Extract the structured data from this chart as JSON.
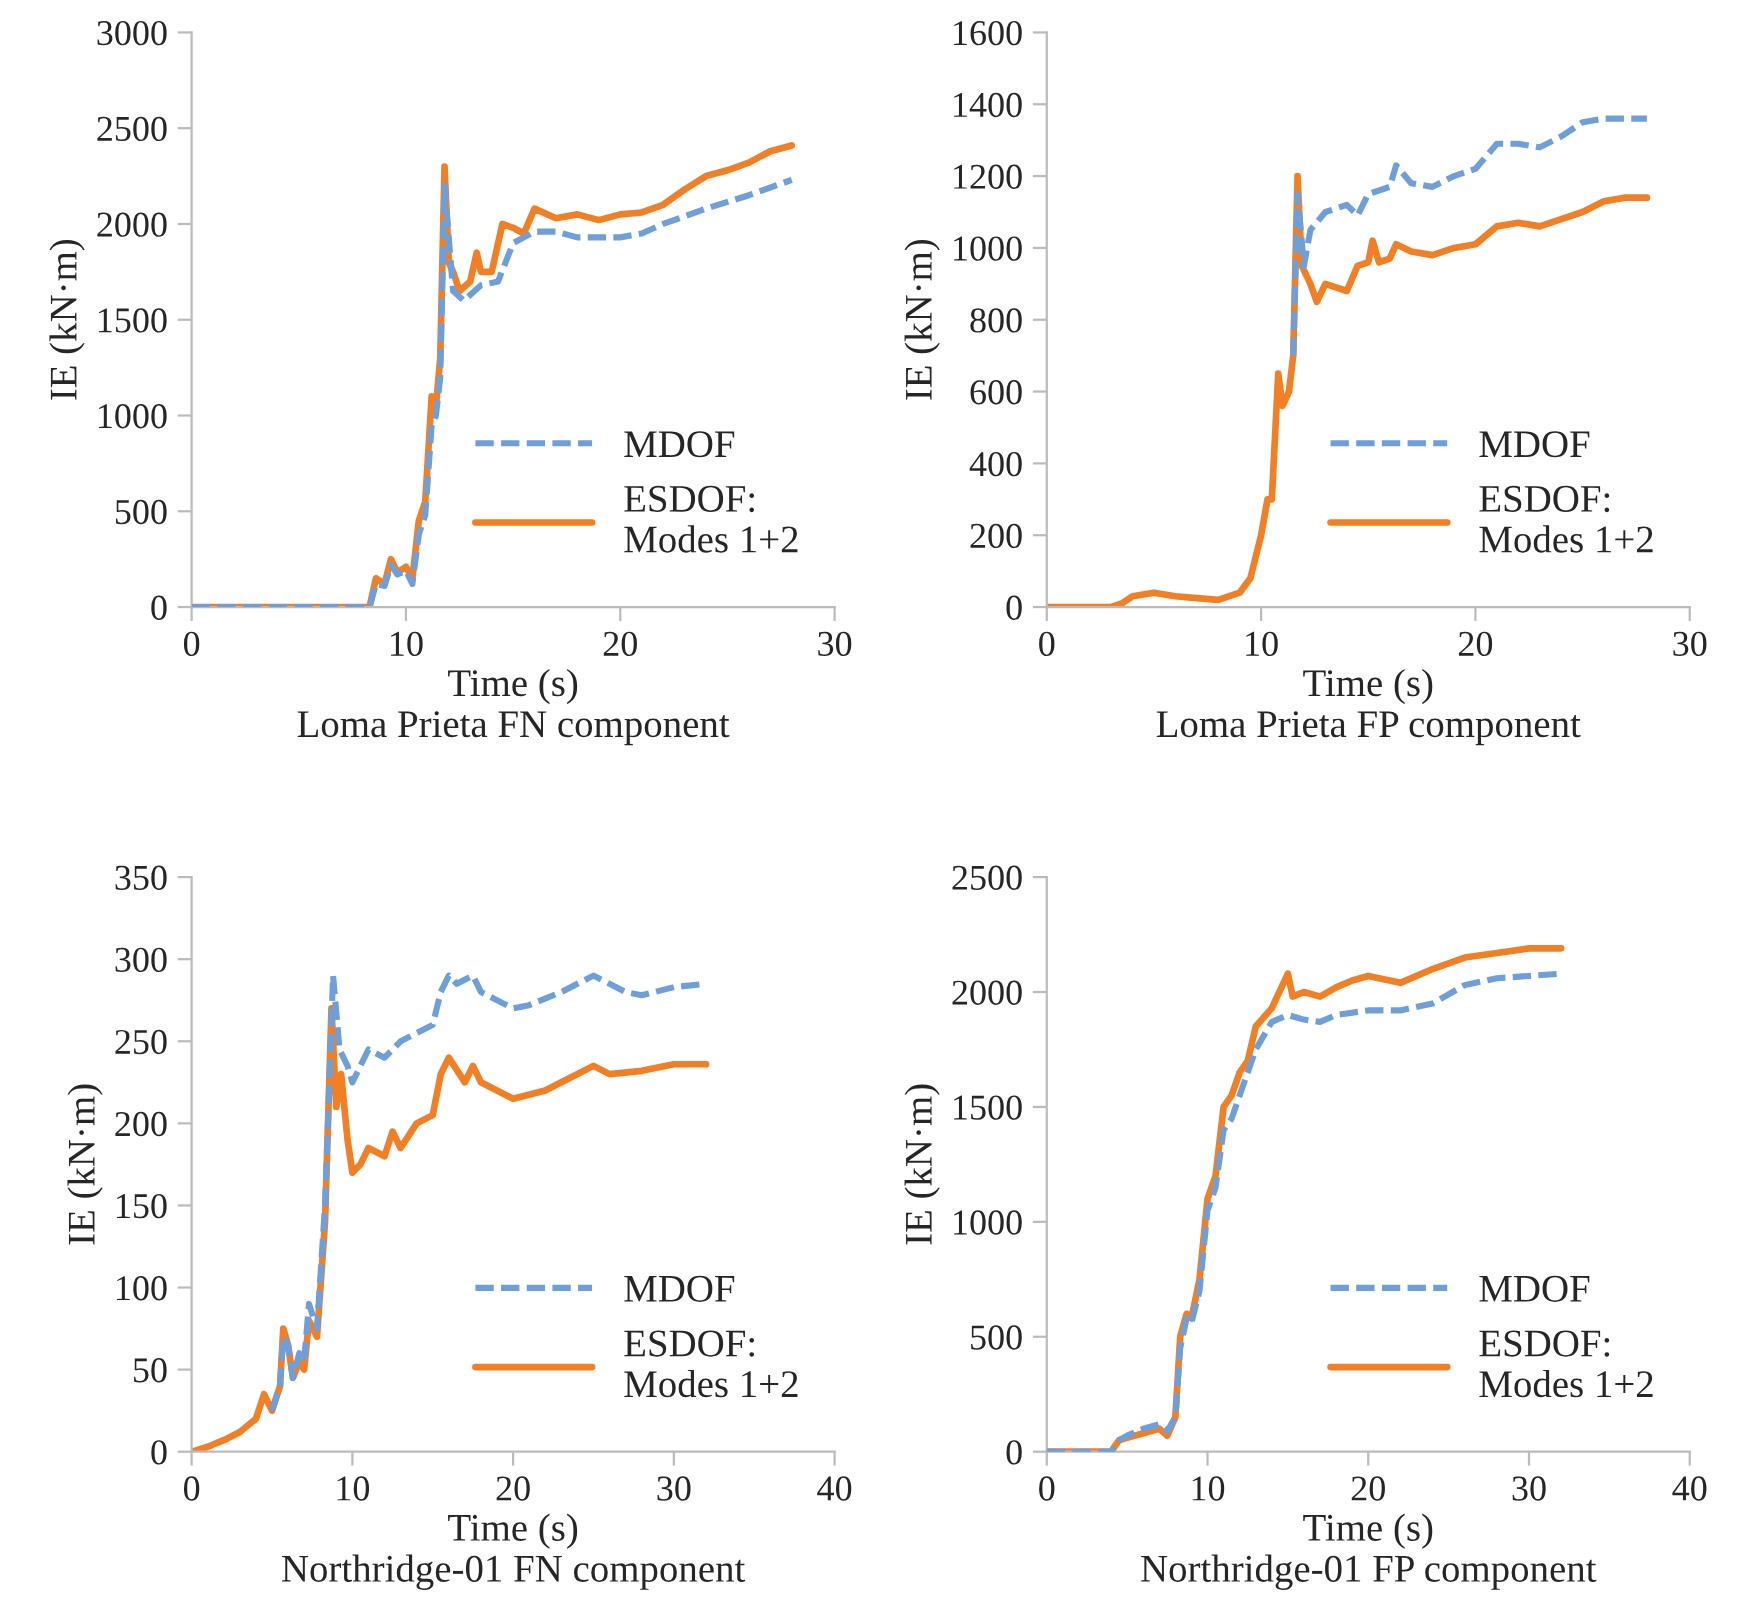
{
  "chart_data": [
    {
      "type": "line",
      "title": "Loma Prieta FN component",
      "xlabel": "Time (s)",
      "ylabel": "IE (kN·m)",
      "xlim": [
        0,
        30
      ],
      "xticks": [
        0,
        10,
        20,
        30
      ],
      "ylim": [
        0,
        3000
      ],
      "yticks": [
        0,
        500,
        1000,
        1500,
        2000,
        2500,
        3000
      ],
      "grid": false,
      "legend": "bottom right",
      "series": [
        {
          "name": "MDOF",
          "color": "#6f9fd8",
          "line_style": "dashed",
          "x": [
            0,
            8.3,
            8.6,
            9,
            9.3,
            9.6,
            10,
            10.3,
            10.6,
            10.9,
            11.2,
            11.4,
            11.6,
            11.8,
            12.2,
            12.7,
            13.5,
            14.3,
            15,
            16,
            17,
            18,
            20,
            21,
            22,
            24,
            26,
            28
          ],
          "values": [
            0,
            0,
            120,
            110,
            220,
            170,
            190,
            120,
            380,
            480,
            950,
            1000,
            1200,
            2200,
            1650,
            1600,
            1680,
            1700,
            1900,
            1960,
            1960,
            1930,
            1930,
            1950,
            2000,
            2080,
            2150,
            2230
          ]
        },
        {
          "name": "ESDOF:\nModes 1+2",
          "color": "#f07f26",
          "line_style": "solid",
          "x": [
            0,
            8.3,
            8.6,
            9,
            9.3,
            9.6,
            10,
            10.3,
            10.6,
            10.9,
            11.2,
            11.4,
            11.6,
            11.8,
            12.0,
            12.2,
            12.5,
            13,
            13.3,
            13.5,
            14,
            14.5,
            15,
            15.5,
            16,
            17,
            18,
            19,
            20,
            21,
            22,
            23,
            24,
            25,
            26,
            27,
            28
          ],
          "values": [
            0,
            0,
            150,
            120,
            250,
            180,
            210,
            150,
            450,
            550,
            1100,
            1050,
            1300,
            2300,
            1800,
            1750,
            1650,
            1700,
            1850,
            1750,
            1750,
            2000,
            1980,
            1950,
            2080,
            2030,
            2050,
            2020,
            2050,
            2060,
            2100,
            2180,
            2250,
            2280,
            2320,
            2380,
            2410
          ]
        }
      ]
    },
    {
      "type": "line",
      "title": "Loma Prieta FP component",
      "xlabel": "Time (s)",
      "ylabel": "IE (kN·m)",
      "xlim": [
        0,
        30
      ],
      "xticks": [
        0,
        10,
        20,
        30
      ],
      "ylim": [
        0,
        1600
      ],
      "yticks": [
        0,
        200,
        400,
        600,
        800,
        1000,
        1200,
        1400,
        1600
      ],
      "grid": false,
      "legend": "bottom right",
      "series": [
        {
          "name": "MDOF",
          "color": "#6f9fd8",
          "line_style": "dashed",
          "x": [
            11.5,
            11.7,
            12,
            12.3,
            13,
            14,
            14.5,
            15,
            16,
            16.3,
            17,
            18,
            19,
            20,
            21,
            22,
            23,
            24,
            25,
            26,
            28
          ],
          "values": [
            700,
            1150,
            950,
            1050,
            1100,
            1120,
            1090,
            1150,
            1170,
            1230,
            1180,
            1170,
            1200,
            1220,
            1290,
            1290,
            1280,
            1310,
            1350,
            1360,
            1360
          ]
        },
        {
          "name": "ESDOF:\nModes 1+2",
          "color": "#f07f26",
          "line_style": "solid",
          "x": [
            0,
            3,
            3.5,
            4,
            5,
            6,
            7,
            8,
            9,
            9.5,
            10,
            10.3,
            10.5,
            10.8,
            11,
            11.3,
            11.5,
            11.7,
            11.9,
            12.3,
            12.6,
            13,
            14,
            14.5,
            15,
            15.2,
            15.5,
            16,
            16.3,
            17,
            18,
            19,
            20,
            21,
            22,
            23,
            24,
            25,
            26,
            27,
            28
          ],
          "values": [
            0,
            0,
            10,
            30,
            40,
            30,
            25,
            20,
            40,
            80,
            200,
            300,
            300,
            650,
            560,
            600,
            700,
            1200,
            950,
            900,
            850,
            900,
            880,
            950,
            960,
            1020,
            960,
            970,
            1010,
            990,
            980,
            1000,
            1010,
            1060,
            1070,
            1060,
            1080,
            1100,
            1130,
            1140,
            1140
          ]
        }
      ]
    },
    {
      "type": "line",
      "title": "Northridge-01 FN component",
      "xlabel": "Time (s)",
      "ylabel": "IE (kN·m)",
      "xlim": [
        0,
        40
      ],
      "xticks": [
        0,
        10,
        20,
        30,
        40
      ],
      "ylim": [
        0,
        350
      ],
      "yticks": [
        0,
        50,
        100,
        150,
        200,
        250,
        300,
        350
      ],
      "grid": false,
      "legend": "bottom right",
      "series": [
        {
          "name": "MDOF",
          "color": "#6f9fd8",
          "line_style": "dashed",
          "x": [
            5,
            5.5,
            5.7,
            6,
            6.3,
            6.7,
            7,
            7.3,
            7.8,
            8.3,
            8.8,
            9.2,
            9.7,
            10,
            11,
            12,
            13,
            14,
            15,
            15.5,
            16,
            16.5,
            17.5,
            18,
            20,
            21,
            23,
            25,
            27,
            28,
            30,
            32
          ],
          "values": [
            25,
            40,
            70,
            65,
            45,
            60,
            55,
            90,
            75,
            150,
            290,
            245,
            235,
            225,
            245,
            240,
            250,
            255,
            260,
            280,
            290,
            285,
            290,
            280,
            270,
            272,
            280,
            290,
            280,
            278,
            283,
            285
          ]
        },
        {
          "name": "ESDOF:\nModes 1+2",
          "color": "#f07f26",
          "line_style": "solid",
          "x": [
            0,
            1,
            2,
            3,
            4,
            4.5,
            5,
            5.5,
            5.7,
            6,
            6.3,
            6.7,
            7,
            7.3,
            7.8,
            8.3,
            8.7,
            9,
            9.3,
            9.7,
            10,
            10.5,
            11,
            12,
            12.5,
            13,
            14,
            15,
            15.5,
            16,
            17,
            17.5,
            18,
            20,
            22,
            23,
            25,
            26,
            28,
            30,
            32
          ],
          "values": [
            0,
            3,
            7,
            12,
            20,
            35,
            25,
            40,
            75,
            65,
            45,
            55,
            50,
            80,
            70,
            140,
            270,
            210,
            230,
            190,
            170,
            175,
            185,
            180,
            195,
            185,
            200,
            205,
            230,
            240,
            225,
            235,
            225,
            215,
            220,
            225,
            235,
            230,
            232,
            236,
            236
          ]
        }
      ]
    },
    {
      "type": "line",
      "title": "Northridge-01 FP component",
      "xlabel": "Time (s)",
      "ylabel": "IE (kN·m)",
      "xlim": [
        0,
        40
      ],
      "xticks": [
        0,
        10,
        20,
        30,
        40
      ],
      "ylim": [
        0,
        2500
      ],
      "yticks": [
        0,
        500,
        1000,
        1500,
        2000,
        2500
      ],
      "grid": false,
      "legend": "bottom right",
      "series": [
        {
          "name": "MDOF",
          "color": "#6f9fd8",
          "line_style": "dashed",
          "x": [
            0,
            4,
            4.5,
            5,
            6,
            7,
            7.5,
            8,
            8.3,
            8.7,
            9,
            9.5,
            10,
            10.5,
            11,
            11.5,
            12,
            13,
            14,
            15,
            16,
            17,
            18,
            20,
            22,
            24,
            26,
            28,
            30,
            32
          ],
          "values": [
            0,
            0,
            50,
            70,
            100,
            120,
            90,
            150,
            450,
            580,
            560,
            700,
            1050,
            1150,
            1400,
            1450,
            1550,
            1750,
            1870,
            1900,
            1880,
            1870,
            1900,
            1920,
            1920,
            1950,
            2030,
            2060,
            2070,
            2080
          ]
        },
        {
          "name": "ESDOF:\nModes 1+2",
          "color": "#f07f26",
          "line_style": "solid",
          "x": [
            0,
            4,
            4.5,
            5,
            6,
            7,
            7.5,
            8,
            8.3,
            8.7,
            9,
            9.5,
            10,
            10.5,
            11,
            11.5,
            12,
            12.5,
            13,
            14,
            15,
            15.3,
            16,
            17,
            18,
            19,
            20,
            22,
            24,
            26,
            28,
            30,
            32
          ],
          "values": [
            0,
            0,
            50,
            60,
            80,
            100,
            70,
            150,
            500,
            600,
            580,
            750,
            1100,
            1200,
            1500,
            1550,
            1650,
            1700,
            1850,
            1930,
            2080,
            1980,
            2000,
            1980,
            2020,
            2050,
            2070,
            2040,
            2100,
            2150,
            2170,
            2190,
            2190
          ]
        }
      ]
    }
  ]
}
